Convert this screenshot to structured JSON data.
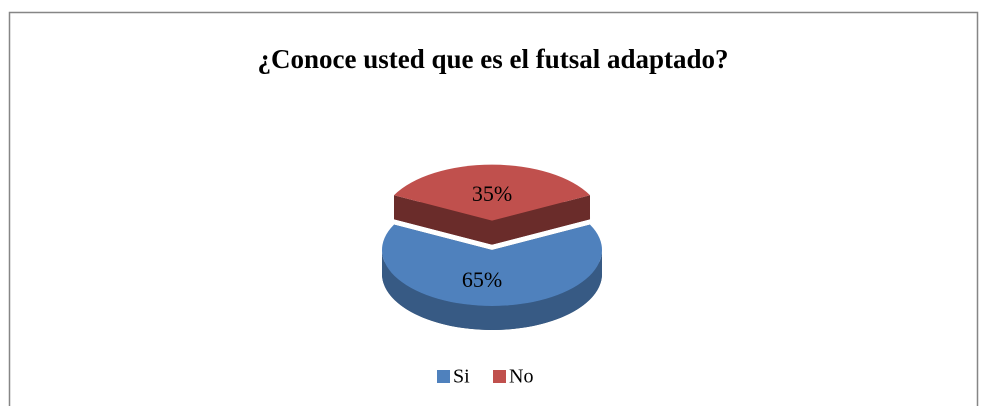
{
  "chart_data": {
    "type": "pie",
    "title": "¿Conoce usted que es el futsal adaptado?",
    "categories": [
      "Si",
      "No"
    ],
    "values": [
      65,
      35
    ],
    "value_labels": [
      "65%",
      "35%"
    ],
    "colors": [
      "#4f81bd",
      "#c0504d"
    ],
    "legend": "bottom"
  }
}
